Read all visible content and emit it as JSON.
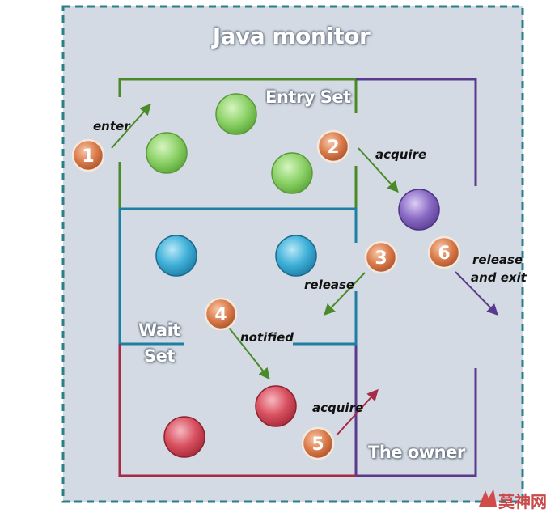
{
  "title": "Java monitor",
  "sets": {
    "entry": "Entry Set",
    "wait_line1": "Wait",
    "wait_line2": "Set",
    "owner": "The owner"
  },
  "steps": [
    {
      "number": "1",
      "label": "enter"
    },
    {
      "number": "2",
      "label": "acquire"
    },
    {
      "number": "3",
      "label": "release"
    },
    {
      "number": "4",
      "label": "notified"
    },
    {
      "number": "5",
      "label": "acquire"
    },
    {
      "number": "6",
      "label_line1": "release",
      "label_line2": "and exit"
    }
  ],
  "watermark": "莫神网",
  "colors": {
    "monitor_bg": "#d3dae3",
    "monitor_border": "#2b7f86",
    "entry_border": "#4a8a28",
    "wait_border": "#1f7fa0",
    "notified_border": "#a62b44",
    "owner_border": "#5a3a8c",
    "green_thread": "#8ed26a",
    "blue_thread": "#3fb0d8",
    "red_thread": "#d9505f",
    "purple_thread": "#8a6ac4",
    "step_badge": "#d97a4a"
  }
}
